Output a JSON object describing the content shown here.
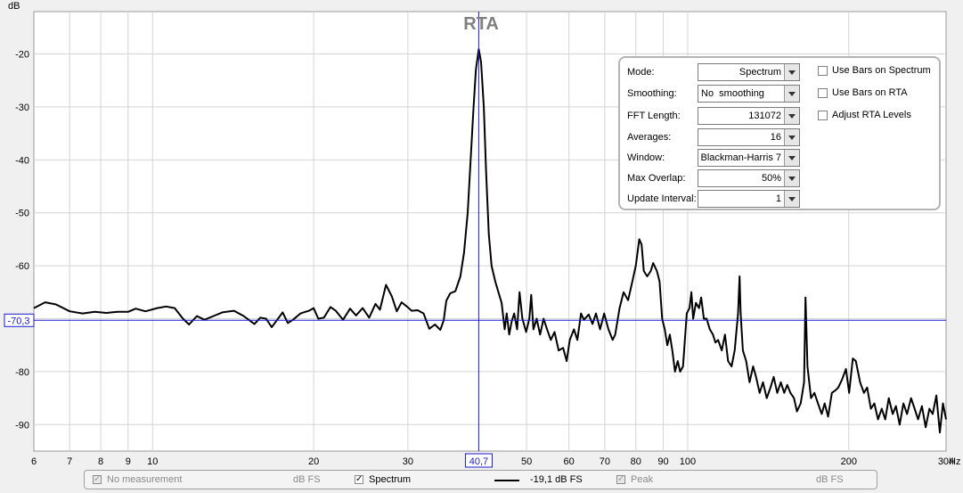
{
  "chart_data": {
    "type": "line",
    "title": "RTA",
    "ylabel": "dB",
    "xunit": "Hz",
    "xscale": "log",
    "xlim": [
      6,
      304
    ],
    "ylim": [
      -95,
      -12
    ],
    "grid": true,
    "y_ticks": [
      -20,
      -30,
      -40,
      -50,
      -60,
      -70,
      -80,
      -90
    ],
    "x_ticks": [
      {
        "value": 6,
        "label": "6"
      },
      {
        "value": 7,
        "label": "7"
      },
      {
        "value": 8,
        "label": "8"
      },
      {
        "value": 9,
        "label": "9"
      },
      {
        "value": 10,
        "label": "10"
      },
      {
        "value": 20,
        "label": "20"
      },
      {
        "value": 30,
        "label": "30"
      },
      {
        "value": 50,
        "label": "50"
      },
      {
        "value": 60,
        "label": "60"
      },
      {
        "value": 70,
        "label": "70"
      },
      {
        "value": 80,
        "label": "80"
      },
      {
        "value": 90,
        "label": "90"
      },
      {
        "value": 100,
        "label": "100"
      },
      {
        "value": 200,
        "label": "200"
      },
      {
        "value": 304,
        "label": "304"
      }
    ],
    "cursor": {
      "x": 40.7,
      "x_label": "40,7",
      "y": -70.3,
      "y_label": "-70,3"
    },
    "series": [
      {
        "name": "Spectrum",
        "color": "#000000",
        "points": [
          [
            6.0,
            -68.0
          ],
          [
            6.3,
            -66.9
          ],
          [
            6.6,
            -67.3
          ],
          [
            7.0,
            -68.6
          ],
          [
            7.4,
            -69.0
          ],
          [
            7.8,
            -68.7
          ],
          [
            8.2,
            -68.9
          ],
          [
            8.6,
            -68.7
          ],
          [
            9.0,
            -68.7
          ],
          [
            9.3,
            -68.1
          ],
          [
            9.7,
            -68.6
          ],
          [
            10.2,
            -68.0
          ],
          [
            10.6,
            -67.7
          ],
          [
            11.0,
            -68.0
          ],
          [
            11.4,
            -70.0
          ],
          [
            11.7,
            -71.1
          ],
          [
            12.1,
            -69.5
          ],
          [
            12.5,
            -70.2
          ],
          [
            13.0,
            -69.5
          ],
          [
            13.5,
            -68.8
          ],
          [
            14.2,
            -68.5
          ],
          [
            14.8,
            -69.5
          ],
          [
            15.5,
            -71.0
          ],
          [
            15.9,
            -69.8
          ],
          [
            16.3,
            -70.0
          ],
          [
            16.7,
            -71.6
          ],
          [
            17.1,
            -70.2
          ],
          [
            17.5,
            -68.8
          ],
          [
            17.9,
            -70.8
          ],
          [
            18.3,
            -70.2
          ],
          [
            18.9,
            -69.0
          ],
          [
            19.6,
            -68.5
          ],
          [
            20.0,
            -68.0
          ],
          [
            20.4,
            -70.0
          ],
          [
            20.9,
            -69.8
          ],
          [
            21.5,
            -67.8
          ],
          [
            22.0,
            -68.5
          ],
          [
            22.7,
            -70.2
          ],
          [
            23.4,
            -68.1
          ],
          [
            24.0,
            -69.4
          ],
          [
            24.7,
            -68.0
          ],
          [
            25.4,
            -69.8
          ],
          [
            26.1,
            -67.2
          ],
          [
            26.6,
            -68.3
          ],
          [
            27.3,
            -63.6
          ],
          [
            28.0,
            -65.8
          ],
          [
            28.6,
            -68.6
          ],
          [
            29.2,
            -66.9
          ],
          [
            29.8,
            -67.6
          ],
          [
            30.5,
            -68.5
          ],
          [
            31.3,
            -68.4
          ],
          [
            32.1,
            -69.0
          ],
          [
            32.9,
            -71.9
          ],
          [
            33.7,
            -71.1
          ],
          [
            34.5,
            -72.1
          ],
          [
            35.0,
            -70.3
          ],
          [
            35.4,
            -66.6
          ],
          [
            36.0,
            -65.2
          ],
          [
            36.8,
            -64.8
          ],
          [
            37.6,
            -62.0
          ],
          [
            38.2,
            -57.5
          ],
          [
            38.8,
            -50.0
          ],
          [
            39.3,
            -40.0
          ],
          [
            39.8,
            -30.0
          ],
          [
            40.2,
            -23.0
          ],
          [
            40.7,
            -19.1
          ],
          [
            41.1,
            -21.5
          ],
          [
            41.6,
            -30.0
          ],
          [
            42.0,
            -42.0
          ],
          [
            42.5,
            -54.0
          ],
          [
            43.0,
            -60.0
          ],
          [
            43.7,
            -63.0
          ],
          [
            44.3,
            -65.0
          ],
          [
            44.9,
            -67.0
          ],
          [
            45.5,
            -72.0
          ],
          [
            45.9,
            -69.0
          ],
          [
            46.4,
            -73.0
          ],
          [
            46.9,
            -70.5
          ],
          [
            47.4,
            -69.0
          ],
          [
            48.0,
            -72.0
          ],
          [
            48.5,
            -65.0
          ],
          [
            49.1,
            -70.0
          ],
          [
            49.9,
            -72.5
          ],
          [
            50.6,
            -70.0
          ],
          [
            51.0,
            -65.5
          ],
          [
            51.5,
            -72.0
          ],
          [
            52.2,
            -70.0
          ],
          [
            53.0,
            -73.0
          ],
          [
            53.8,
            -70.0
          ],
          [
            54.6,
            -72.0
          ],
          [
            55.5,
            -74.0
          ],
          [
            56.4,
            -72.5
          ],
          [
            57.4,
            -76.0
          ],
          [
            58.5,
            -75.5
          ],
          [
            59.4,
            -78.0
          ],
          [
            60.2,
            -74.0
          ],
          [
            61.3,
            -72.0
          ],
          [
            62.2,
            -74.0
          ],
          [
            63.2,
            -69.0
          ],
          [
            64.0,
            -70.2
          ],
          [
            65.3,
            -69.2
          ],
          [
            66.4,
            -71.0
          ],
          [
            67.4,
            -69.0
          ],
          [
            68.6,
            -72.0
          ],
          [
            69.8,
            -69.0
          ],
          [
            71.1,
            -72.0
          ],
          [
            72.4,
            -74.0
          ],
          [
            73.2,
            -73.0
          ],
          [
            74.6,
            -68.0
          ],
          [
            75.9,
            -65.0
          ],
          [
            77.4,
            -66.5
          ],
          [
            78.8,
            -63.0
          ],
          [
            80.0,
            -60.0
          ],
          [
            81.2,
            -55.0
          ],
          [
            82.0,
            -56.0
          ],
          [
            82.8,
            -61.0
          ],
          [
            84.0,
            -62.0
          ],
          [
            85.3,
            -61.0
          ],
          [
            86.2,
            -59.5
          ],
          [
            87.6,
            -61.0
          ],
          [
            88.6,
            -63.0
          ],
          [
            89.6,
            -70.0
          ],
          [
            90.6,
            -72.0
          ],
          [
            91.6,
            -75.0
          ],
          [
            92.6,
            -73.0
          ],
          [
            93.6,
            -76.0
          ],
          [
            94.7,
            -80.0
          ],
          [
            95.8,
            -78.0
          ],
          [
            96.8,
            -80.0
          ],
          [
            98.0,
            -79.0
          ],
          [
            99.6,
            -69.0
          ],
          [
            100.8,
            -68.0
          ],
          [
            101.6,
            -65.0
          ],
          [
            102.4,
            -70.0
          ],
          [
            103.6,
            -67.0
          ],
          [
            105.0,
            -68.0
          ],
          [
            106.0,
            -66.0
          ],
          [
            107.2,
            -70.0
          ],
          [
            108.5,
            -70.0
          ],
          [
            110.0,
            -72.0
          ],
          [
            111.5,
            -73.0
          ],
          [
            112.7,
            -74.5
          ],
          [
            114.0,
            -74.0
          ],
          [
            115.8,
            -76.0
          ],
          [
            117.4,
            -73.0
          ],
          [
            119.0,
            -78.0
          ],
          [
            120.8,
            -79.0
          ],
          [
            122.4,
            -76.0
          ],
          [
            124.2,
            -69.0
          ],
          [
            125.0,
            -62.0
          ],
          [
            125.6,
            -69.0
          ],
          [
            126.8,
            -76.0
          ],
          [
            128.6,
            -78.0
          ],
          [
            130.5,
            -82.0
          ],
          [
            132.5,
            -79.0
          ],
          [
            134.2,
            -81.0
          ],
          [
            136.3,
            -84.0
          ],
          [
            138.3,
            -82.0
          ],
          [
            140.5,
            -85.0
          ],
          [
            142.8,
            -83.0
          ],
          [
            144.8,
            -81.0
          ],
          [
            147.0,
            -84.0
          ],
          [
            149.3,
            -82.0
          ],
          [
            151.5,
            -84.0
          ],
          [
            153.5,
            -82.5
          ],
          [
            155.6,
            -84.0
          ],
          [
            158.0,
            -85.0
          ],
          [
            160.0,
            -87.5
          ],
          [
            162.6,
            -86.0
          ],
          [
            165.0,
            -82.0
          ],
          [
            166.0,
            -66.0
          ],
          [
            167.4,
            -79.0
          ],
          [
            170.0,
            -85.0
          ],
          [
            172.5,
            -84.0
          ],
          [
            175.2,
            -86.0
          ],
          [
            178.0,
            -88.0
          ],
          [
            180.3,
            -86.0
          ],
          [
            183.0,
            -88.5
          ],
          [
            186.0,
            -84.0
          ],
          [
            189.0,
            -83.5
          ],
          [
            191.2,
            -83.0
          ],
          [
            194.3,
            -81.5
          ],
          [
            197.6,
            -79.5
          ],
          [
            200.3,
            -84.0
          ],
          [
            203.5,
            -77.5
          ],
          [
            206.2,
            -78.0
          ],
          [
            210.0,
            -82.0
          ],
          [
            213.5,
            -84.0
          ],
          [
            216.5,
            -83.0
          ],
          [
            220.0,
            -87.0
          ],
          [
            223.3,
            -86.0
          ],
          [
            226.8,
            -89.0
          ],
          [
            230.5,
            -87.0
          ],
          [
            234.0,
            -89.0
          ],
          [
            237.6,
            -85.0
          ],
          [
            241.6,
            -88.0
          ],
          [
            245.0,
            -86.5
          ],
          [
            249.0,
            -90.0
          ],
          [
            253.0,
            -86.0
          ],
          [
            257.0,
            -88.0
          ],
          [
            261.5,
            -85.0
          ],
          [
            265.5,
            -87.0
          ],
          [
            269.5,
            -89.0
          ],
          [
            274.0,
            -86.5
          ],
          [
            278.5,
            -90.5
          ],
          [
            283.0,
            -87.0
          ],
          [
            287.0,
            -88.0
          ],
          [
            291.6,
            -84.5
          ],
          [
            296.0,
            -91.5
          ],
          [
            300.0,
            -86.0
          ],
          [
            304.0,
            -89.0
          ]
        ]
      }
    ]
  },
  "controls": {
    "mode": {
      "label": "Mode:",
      "value": "Spectrum"
    },
    "smoothing": {
      "label": "Smoothing:",
      "value": "No  smoothing"
    },
    "fft_length": {
      "label": "FFT Length:",
      "value": "131072"
    },
    "averages": {
      "label": "Averages:",
      "value": "16"
    },
    "window": {
      "label": "Window:",
      "value": "Blackman-Harris 7"
    },
    "max_overlap": {
      "label": "Max Overlap:",
      "value": "50%"
    },
    "update_interval": {
      "label": "Update Interval:",
      "value": "1"
    },
    "use_bars_spectrum": {
      "label": "Use Bars on Spectrum",
      "checked": false
    },
    "use_bars_rta": {
      "label": "Use Bars on RTA",
      "checked": false
    },
    "adjust_rta_levels": {
      "label": "Adjust RTA Levels",
      "checked": false
    }
  },
  "legend": {
    "no_measurement": {
      "label": "No measurement",
      "unit": "dB FS"
    },
    "spectrum": {
      "label": "Spectrum",
      "value": "-19,1 dB FS"
    },
    "peak": {
      "label": "Peak",
      "unit": "dB FS"
    }
  }
}
